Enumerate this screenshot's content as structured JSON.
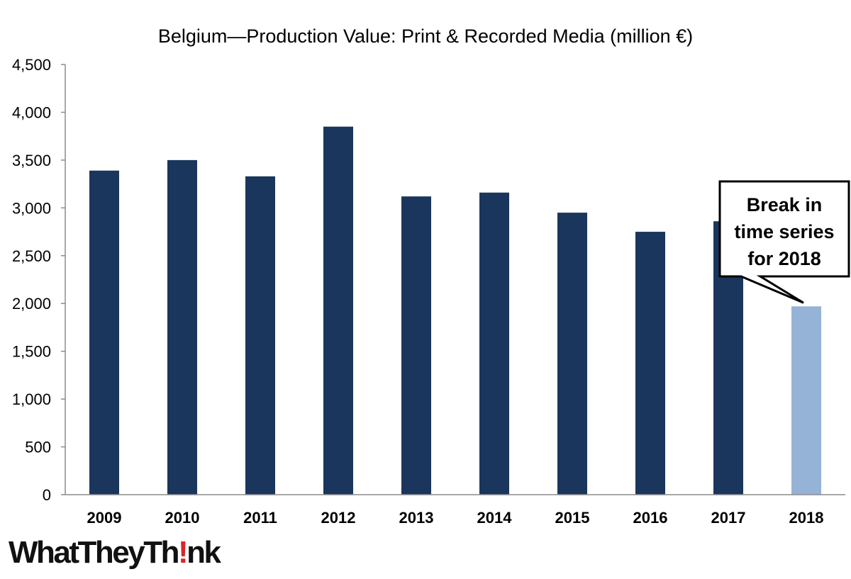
{
  "chart_data": {
    "type": "bar",
    "title": "Belgium—Production Value: Print & Recorded Media (million €)",
    "xlabel": "",
    "ylabel": "",
    "ylim": [
      0,
      4500
    ],
    "y_ticks": [
      0,
      500,
      1000,
      1500,
      2000,
      2500,
      3000,
      3500,
      4000,
      4500
    ],
    "y_tick_labels": [
      "0",
      "500",
      "1,000",
      "1,500",
      "2,000",
      "2,500",
      "3,000",
      "3,500",
      "4,000",
      "4,500"
    ],
    "categories": [
      "2009",
      "2010",
      "2011",
      "2012",
      "2013",
      "2014",
      "2015",
      "2016",
      "2017",
      "2018"
    ],
    "values": [
      3390,
      3500,
      3330,
      3850,
      3120,
      3160,
      2950,
      2750,
      2860,
      1970
    ],
    "colors": {
      "bar": "#1a365c",
      "highlight_bar": "#95b3d7",
      "highlight_category": "2018",
      "axis": "#8c8c8c"
    },
    "grid": false,
    "legend": "none",
    "annotation": {
      "lines": [
        "Break in",
        "time series",
        "for 2018"
      ],
      "target_category": "2018"
    }
  },
  "logo": {
    "before": "WhatTheyTh",
    "mark": "!",
    "after": "nk"
  }
}
